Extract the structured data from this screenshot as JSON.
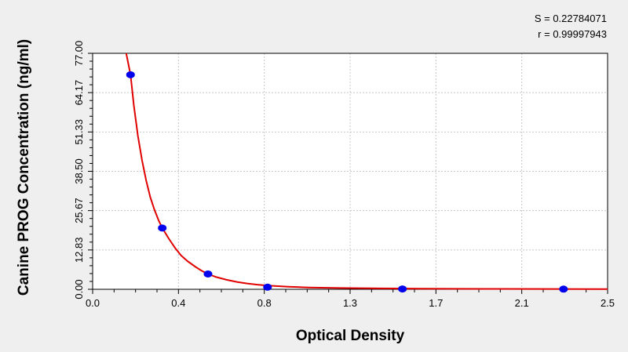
{
  "stats": {
    "s_text": "S = 0.22784071",
    "r_text": "r = 0.99997943"
  },
  "chart_data": {
    "type": "scatter",
    "xlabel": "Optical Density",
    "ylabel": "Canine PROG Concentration (ng/ml)",
    "xlim": [
      0,
      2.5
    ],
    "ylim": [
      0,
      77
    ],
    "x_ticks": [
      {
        "value": 0,
        "label": "0.0"
      },
      {
        "value": 0.4167,
        "label": "0.4"
      },
      {
        "value": 0.8333,
        "label": "0.8"
      },
      {
        "value": 1.25,
        "label": "1.3"
      },
      {
        "value": 1.6667,
        "label": "1.7"
      },
      {
        "value": 2.0833,
        "label": "2.1"
      },
      {
        "value": 2.5,
        "label": "2.5"
      }
    ],
    "y_ticks": [
      {
        "value": 0,
        "label": "0.00"
      },
      {
        "value": 12.83,
        "label": "12.83"
      },
      {
        "value": 25.67,
        "label": "25.67"
      },
      {
        "value": 38.5,
        "label": "38.50"
      },
      {
        "value": 51.33,
        "label": "51.33"
      },
      {
        "value": 64.17,
        "label": "64.17"
      },
      {
        "value": 77,
        "label": "77.00"
      }
    ],
    "grid": true,
    "points": [
      {
        "x": 0.184,
        "y": 70
      },
      {
        "x": 0.338,
        "y": 20
      },
      {
        "x": 0.56,
        "y": 5
      },
      {
        "x": 0.849,
        "y": 0.7
      },
      {
        "x": 1.504,
        "y": 0.1
      },
      {
        "x": 2.286,
        "y": 0.05
      }
    ],
    "fit_curve": [
      [
        0.163,
        77
      ],
      [
        0.184,
        70
      ],
      [
        0.2,
        60
      ],
      [
        0.22,
        50
      ],
      [
        0.24,
        42
      ],
      [
        0.26,
        35.5
      ],
      [
        0.28,
        30
      ],
      [
        0.3,
        26
      ],
      [
        0.32,
        22.5
      ],
      [
        0.338,
        20
      ],
      [
        0.37,
        16.5
      ],
      [
        0.4,
        13.5
      ],
      [
        0.43,
        11
      ],
      [
        0.46,
        9.2
      ],
      [
        0.5,
        7.3
      ],
      [
        0.53,
        6
      ],
      [
        0.56,
        5
      ],
      [
        0.6,
        4
      ],
      [
        0.65,
        3.1
      ],
      [
        0.7,
        2.4
      ],
      [
        0.75,
        1.9
      ],
      [
        0.8,
        1.5
      ],
      [
        0.85,
        1.2
      ],
      [
        0.95,
        0.85
      ],
      [
        1.05,
        0.6
      ],
      [
        1.2,
        0.42
      ],
      [
        1.4,
        0.28
      ],
      [
        1.6,
        0.2
      ],
      [
        1.9,
        0.13
      ],
      [
        2.2,
        0.09
      ],
      [
        2.5,
        0.06
      ]
    ],
    "colors": {
      "points": "#0000ee",
      "curve": "#e00000",
      "grid": "#c8c8c8"
    }
  }
}
